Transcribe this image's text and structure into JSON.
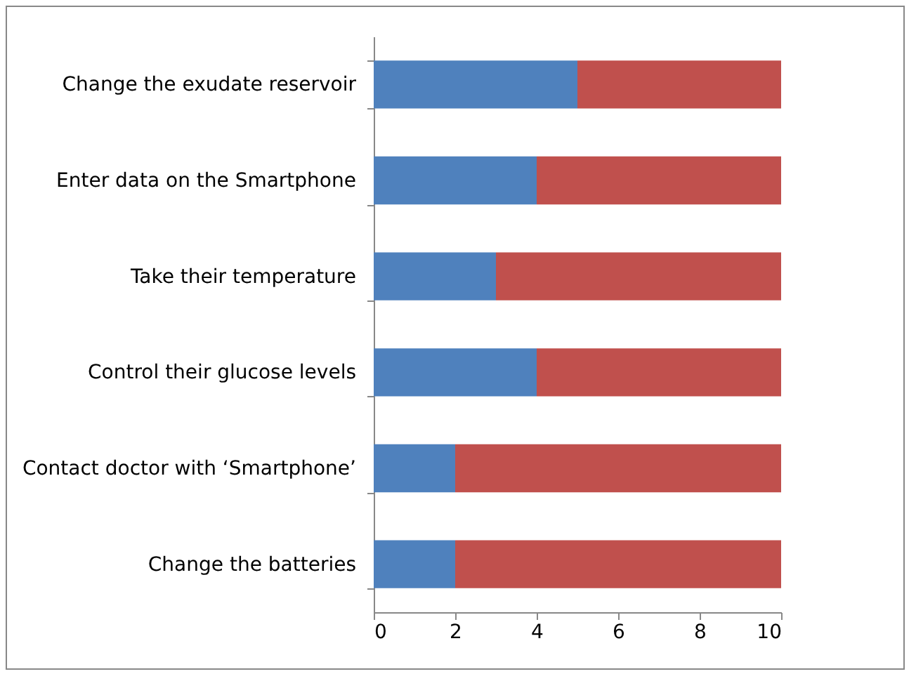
{
  "chart_data": {
    "type": "bar",
    "orientation": "horizontal",
    "stacked": true,
    "categories": [
      "Change the exudate reservoir",
      "Enter data on the Smartphone",
      "Take their temperature",
      "Control their glucose levels",
      "Contact doctor with ‘Smartphone’",
      "Change the batteries"
    ],
    "series": [
      {
        "color": "#4f81bd",
        "values": [
          5,
          4,
          3,
          4,
          2,
          2
        ]
      },
      {
        "color": "#c0504d",
        "values": [
          5,
          6,
          7,
          6,
          8,
          8
        ]
      }
    ],
    "xlim": [
      0,
      10
    ],
    "xticks": [
      0,
      2,
      4,
      6,
      8,
      10
    ],
    "grid": false,
    "legend": false
  }
}
